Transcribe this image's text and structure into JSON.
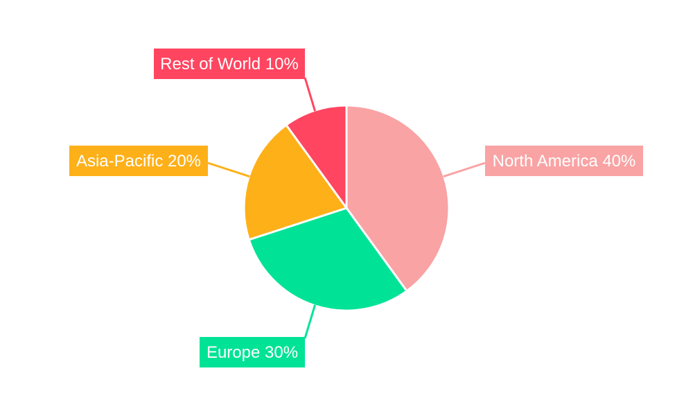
{
  "chart_data": {
    "type": "pie",
    "title": "",
    "categories": [
      "North America",
      "Europe",
      "Asia-Pacific",
      "Rest of World"
    ],
    "values": [
      40,
      30,
      20,
      10
    ],
    "labels": [
      "North America 40%",
      "Europe 30%",
      "Asia-Pacific 20%",
      "Rest of World 10%"
    ],
    "colors": [
      "#F9A3A4",
      "#00E396",
      "#FEB019",
      "#FF4560"
    ],
    "start_angle": "top",
    "direction": "clockwise",
    "legend": "none"
  }
}
